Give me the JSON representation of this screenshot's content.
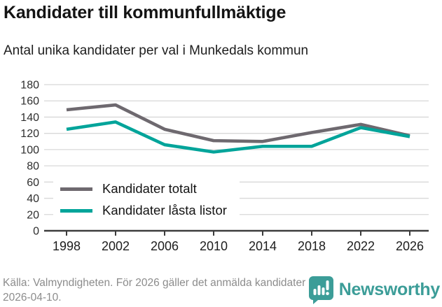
{
  "header": {
    "title": "Kandidater till kommunfullmäktige",
    "subtitle": "Antal unika kandidater per val i Munkedals kommun"
  },
  "chart_data": {
    "type": "line",
    "x": [
      "1998",
      "2002",
      "2006",
      "2010",
      "2014",
      "2018",
      "2022",
      "2026"
    ],
    "series": [
      {
        "name": "Kandidater totalt",
        "color": "#6e696f",
        "values": [
          149,
          155,
          125,
          111,
          110,
          121,
          131,
          117
        ]
      },
      {
        "name": "Kandidater låsta listor",
        "color": "#00a49a",
        "values": [
          125,
          134,
          106,
          97,
          104,
          104,
          127,
          116
        ]
      }
    ],
    "title": "Kandidater till kommunfullmäktige",
    "subtitle": "Antal unika kandidater per val i Munkedals kommun",
    "xlabel": "",
    "ylabel": "",
    "ylim": [
      0,
      180
    ],
    "ytick_step": 20,
    "grid": true,
    "legend_position": "lower-left-inside",
    "axis_color": "#3c3c3c",
    "grid_color": "#d8d8d8",
    "tick_label_color": "#2f2f2f"
  },
  "footer": {
    "source": "Källa: Valmyndigheten. För 2026 gäller det anmälda kandidater 2026-04-10.",
    "brand": "Newsworthy",
    "brand_color": "#3c9d98"
  },
  "icons": {
    "logo": "newsworthy-bars-bubble-icon"
  }
}
